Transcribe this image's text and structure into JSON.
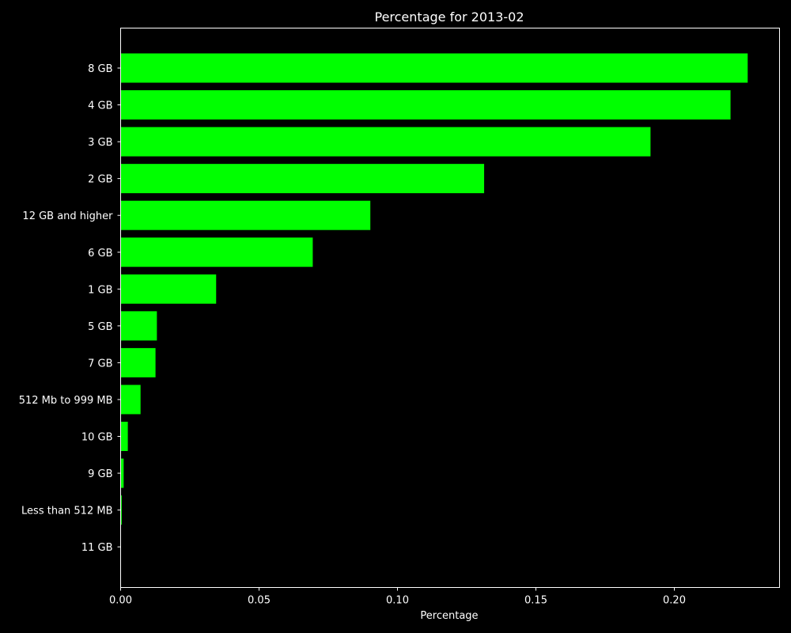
{
  "chart_data": {
    "type": "bar",
    "orientation": "horizontal",
    "title": "Percentage for 2013-02",
    "xlabel": "Percentage",
    "ylabel": "",
    "categories": [
      "8 GB",
      "4 GB",
      "3 GB",
      "2 GB",
      "12 GB and higher",
      "6 GB",
      "1 GB",
      "5 GB",
      "7 GB",
      "512 Mb to 999 MB",
      "10 GB",
      "9 GB",
      "Less than 512 MB",
      "11 GB"
    ],
    "values": [
      0.2265,
      0.2203,
      0.1914,
      0.1313,
      0.0902,
      0.0694,
      0.0345,
      0.0131,
      0.0126,
      0.0072,
      0.0026,
      0.0011,
      0.0004,
      0.0001
    ],
    "xlim": [
      0,
      0.238
    ],
    "xticks": [
      0.0,
      0.05,
      0.1,
      0.15,
      0.2
    ],
    "xtick_labels": [
      "0.00",
      "0.05",
      "0.10",
      "0.15",
      "0.20"
    ],
    "grid": false,
    "legend": "none",
    "colors": {
      "background": "#000000",
      "bar": "#00ff00",
      "axis": "#ffffff",
      "text": "#ffffff"
    }
  }
}
